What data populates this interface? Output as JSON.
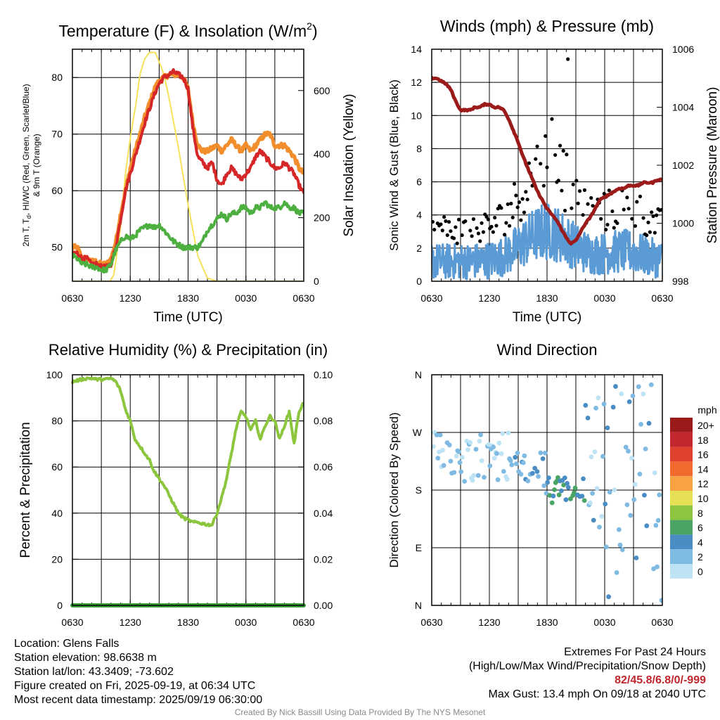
{
  "chart_data": [
    {
      "type": "line",
      "title": "Temperature (F) & Insolation (W/m",
      "title_sup": "2",
      "title_end": ")",
      "xlabel": "Time (UTC)",
      "ylabel_lines": [
        "2m T, T",
        "d",
        ", HI/WC (Red, Green, Scarlet/Blue)",
        "& 9m T (Orange)"
      ],
      "ylabel_right": "Solar Insolation (Yellow)",
      "x_ticks": [
        "0630",
        "1230",
        "1830",
        "0030",
        "0630"
      ],
      "x_range": [
        0,
        24
      ],
      "y_left_range": [
        44,
        85
      ],
      "y_left_ticks": [
        50,
        60,
        70,
        80
      ],
      "y_right_range": [
        0,
        730
      ],
      "y_right_ticks": [
        0,
        200,
        400,
        600
      ],
      "grid": true,
      "series": [
        {
          "color": "#f5e15a",
          "axis": "right",
          "x": [
            0,
            2,
            3.4,
            3.9,
            4.3,
            5.0,
            5.5,
            6.0,
            6.6,
            7.0,
            7.5,
            8.0,
            8.6,
            9.0,
            9.5,
            10.0,
            11.0,
            12.0,
            13.0,
            14.0,
            15.0,
            16.0,
            17.0,
            17.6,
            18.0,
            24
          ],
          "y": [
            0,
            0,
            0,
            0,
            20,
            170,
            340,
            450,
            560,
            650,
            700,
            720,
            720,
            690,
            650,
            580,
            420,
            240,
            80,
            10,
            0,
            0,
            0,
            0,
            0,
            0
          ]
        },
        {
          "color": "#f28e2b",
          "axis": "left",
          "x": [
            0,
            0.5,
            1,
            1.5,
            2,
            2.5,
            3,
            3.5,
            4,
            4.5,
            5,
            5.5,
            6,
            6.5,
            7,
            7.5,
            8,
            8.5,
            9,
            9.5,
            10,
            10.5,
            11,
            11.5,
            12,
            12.5,
            13,
            13.5,
            14,
            14.5,
            15,
            15.5,
            16,
            16.5,
            17,
            17.5,
            18,
            18.5,
            19,
            19.5,
            20,
            20.5,
            21,
            21.5,
            22,
            22.5,
            23,
            23.5,
            24
          ],
          "y": [
            50,
            50,
            48,
            48,
            47.5,
            47.5,
            47,
            47,
            48,
            51,
            56,
            60,
            64,
            67,
            70,
            73,
            75.5,
            78,
            79.5,
            80,
            80.5,
            80.5,
            80.5,
            80,
            78,
            72,
            68,
            67,
            67,
            67.5,
            68,
            67,
            68,
            69,
            68,
            67,
            68,
            67,
            68,
            69,
            70,
            70,
            68,
            68,
            68,
            67,
            66,
            64,
            63
          ]
        },
        {
          "color": "#d62728",
          "axis": "left",
          "x": [
            0,
            0.5,
            1,
            1.5,
            2,
            2.5,
            3,
            3.5,
            4,
            4.5,
            5,
            5.5,
            6,
            6.5,
            7,
            7.5,
            8,
            8.5,
            9,
            9.5,
            10,
            10.5,
            11,
            11.5,
            12,
            12.5,
            13,
            13.5,
            14,
            14.5,
            15,
            15.5,
            16,
            16.5,
            17,
            17.5,
            18,
            18.5,
            19,
            19.5,
            20,
            20.5,
            21,
            21.5,
            22,
            22.5,
            23,
            23.5,
            24
          ],
          "y": [
            49,
            49,
            48,
            48,
            47,
            47,
            46.5,
            46.5,
            47,
            50,
            55,
            60,
            63,
            66,
            69,
            72,
            74.5,
            77,
            79,
            80,
            80.5,
            81,
            80.5,
            80,
            78,
            71,
            66,
            65,
            64,
            65,
            62,
            61,
            63,
            64,
            63,
            62,
            63,
            64,
            66,
            67,
            66,
            65,
            64,
            64,
            65,
            64,
            63,
            61,
            59.5
          ]
        },
        {
          "color": "#4daf3f",
          "axis": "left",
          "x": [
            0,
            0.5,
            1,
            1.5,
            2,
            2.5,
            3,
            3.5,
            4,
            4.5,
            5,
            5.5,
            6,
            6.5,
            7,
            7.5,
            8,
            8.5,
            9,
            9.5,
            10,
            10.5,
            11,
            11.5,
            12,
            12.5,
            13,
            13.5,
            14,
            14.5,
            15,
            15.5,
            16,
            16.5,
            17,
            17.5,
            18,
            18.5,
            19,
            19.5,
            20,
            20.5,
            21,
            21.5,
            22,
            22.5,
            23,
            23.5,
            24
          ],
          "y": [
            48.5,
            48,
            47,
            47,
            46.5,
            46.5,
            46,
            46,
            47,
            49.5,
            51,
            52,
            51.5,
            52,
            53,
            53.5,
            54,
            53.5,
            54,
            53,
            52,
            51,
            50.5,
            50,
            50,
            50,
            50,
            51,
            53,
            54,
            55,
            56,
            55,
            56,
            56,
            57,
            57,
            56,
            57,
            57,
            58,
            57,
            57,
            57,
            58,
            57,
            57,
            56,
            56
          ]
        }
      ]
    },
    {
      "type": "scatter",
      "title": "Winds (mph) & Pressure (mb)",
      "xlabel": "Time (UTC)",
      "ylabel": "Sonic Wind & Gust (Blue, Black)",
      "ylabel_right": "Station Pressure (Maroon)",
      "x_ticks": [
        "0630",
        "1230",
        "1830",
        "0030",
        "0630"
      ],
      "x_range": [
        0,
        24
      ],
      "y_left_range": [
        0,
        14
      ],
      "y_left_ticks": [
        0,
        2,
        4,
        6,
        8,
        10,
        12,
        14
      ],
      "y_right_range": [
        998,
        1006
      ],
      "y_right_ticks": [
        998,
        1000,
        1002,
        1004,
        1006
      ],
      "grid": true,
      "max_gust": {
        "time": 14.17,
        "value": 13.4
      },
      "pressure": {
        "color": "#9b1b1b",
        "x": [
          0,
          0.5,
          1,
          1.5,
          2,
          2.5,
          3,
          3.5,
          4,
          4.5,
          5,
          5.5,
          6,
          6.5,
          7,
          7.5,
          8,
          8.5,
          9,
          9.5,
          10,
          10.5,
          11,
          11.5,
          12,
          12.5,
          13,
          13.5,
          14,
          14.5,
          15,
          15.5,
          16,
          16.5,
          17,
          17.5,
          18,
          18.5,
          19,
          19.5,
          20,
          20.5,
          21,
          21.5,
          22,
          22.5,
          23,
          23.5,
          24
        ],
        "y": [
          1005,
          1005,
          1004.9,
          1004.8,
          1004.6,
          1004.2,
          1003.9,
          1003.9,
          1003.9,
          1004.0,
          1004.0,
          1004.1,
          1004.1,
          1004.0,
          1004.0,
          1003.9,
          1003.6,
          1003.2,
          1002.8,
          1002.3,
          1001.9,
          1001.5,
          1001.1,
          1000.8,
          1000.5,
          1000.3,
          1000.1,
          999.8,
          999.5,
          999.3,
          999.4,
          999.7,
          1000.0,
          1000.2,
          1000.5,
          1000.8,
          1000.9,
          1001.0,
          1001.1,
          1001.2,
          1001.2,
          1001.3,
          1001.3,
          1001.3,
          1001.4,
          1001.4,
          1001.4,
          1001.5,
          1001.5
        ]
      },
      "wind_color": "#5a9bd5",
      "gust_color": "#000000"
    },
    {
      "type": "line",
      "title": "Relative Humidity (%) & Precipitation (in)",
      "xlabel": "",
      "ylabel": "Percent & Precipitation",
      "x_ticks": [
        "0630",
        "1230",
        "1830",
        "0030",
        "0630"
      ],
      "x_range": [
        0,
        24
      ],
      "y_left_range": [
        0,
        100
      ],
      "y_left_ticks": [
        0,
        20,
        40,
        60,
        80,
        100
      ],
      "y_right_range": [
        0,
        0.1
      ],
      "y_right_ticks": [
        "0.00",
        "0.02",
        "0.04",
        "0.06",
        "0.08",
        "0.10"
      ],
      "grid": true,
      "series": [
        {
          "color": "#8cc63f",
          "axis": "left",
          "x": [
            0,
            0.5,
            1,
            1.5,
            2,
            2.5,
            3,
            3.5,
            4,
            4.5,
            5,
            5.5,
            6,
            6.5,
            7,
            7.5,
            8,
            8.5,
            9,
            9.5,
            10,
            10.5,
            11,
            11.5,
            12,
            12.5,
            13,
            13.5,
            14,
            14.5,
            15,
            15.5,
            16,
            16.5,
            17,
            17.5,
            18,
            18.5,
            19,
            19.5,
            20,
            20.5,
            21,
            21.5,
            22,
            22.5,
            23,
            23.5,
            24
          ],
          "y": [
            97,
            97.5,
            98,
            98.5,
            98.5,
            98,
            98,
            98,
            98.5,
            97,
            93,
            85,
            80,
            72,
            69,
            66,
            63,
            58,
            55,
            52,
            48,
            44,
            40,
            38,
            37,
            36,
            36,
            35.5,
            35,
            35,
            40,
            47,
            55,
            66,
            77,
            84,
            82,
            76,
            80,
            72,
            78,
            82,
            80,
            72,
            78,
            84,
            70,
            84,
            88
          ]
        },
        {
          "color": "#3a9e3a",
          "axis": "right",
          "x": [
            0,
            24
          ],
          "y": [
            0,
            0
          ]
        }
      ]
    },
    {
      "type": "scatter",
      "title": "Wind Direction",
      "ylabel": "Direction (Colored By Speed)",
      "x_ticks": [
        "0630",
        "1230",
        "1830",
        "0030",
        "0630"
      ],
      "x_range": [
        0,
        24
      ],
      "y_range": [
        0,
        360
      ],
      "y_ticks": [
        "N",
        "E",
        "S",
        "W",
        "N"
      ],
      "grid": true,
      "legend": {
        "title": "mph",
        "labels": [
          "20+",
          "18",
          "16",
          "14",
          "12",
          "10",
          "8",
          "6",
          "4",
          "2",
          "0"
        ],
        "colors": [
          "#9b1b1b",
          "#c1272d",
          "#e0412f",
          "#f26a2e",
          "#f7a243",
          "#e6e055",
          "#8cc63f",
          "#4aa564",
          "#4a8cc4",
          "#7fbae3",
          "#bde3f5"
        ]
      }
    }
  ],
  "info": {
    "location": "Location: Glens Falls",
    "elevation": "Station elevation: 98.6638 m",
    "latlon": "Station lat/lon: 43.3409; -73.602",
    "created": "Figure created on Fri, 2025-09-19, at 06:34 UTC",
    "recent": "Most recent data timestamp: 2025/09/19 06:30:00"
  },
  "extremes": {
    "title": "Extremes For Past 24 Hours",
    "subtitle": "(High/Low/Max Wind/Precipitation/Snow Depth)",
    "values": "82/45.8/6.8/0/-999",
    "gust": "Max Gust: 13.4 mph On 09/18 at 2040 UTC"
  },
  "credit": "Created By Nick Bassill Using Data Provided By The NYS Mesonet"
}
